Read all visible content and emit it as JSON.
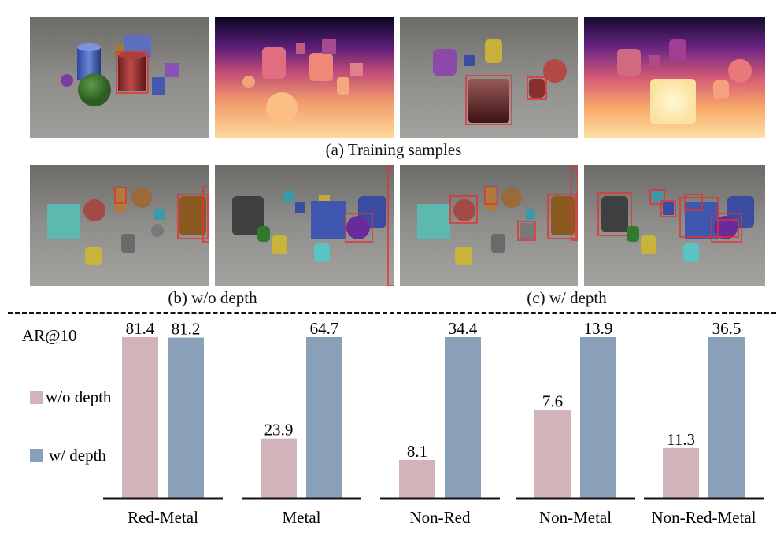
{
  "captions": {
    "training": "(a) Training samples",
    "without_depth": "(b) w/o depth",
    "with_depth": "(c) w/ depth"
  },
  "colors": {
    "without_depth": "#d2b3ba",
    "with_depth": "#8aa0b9",
    "box": "#e53030"
  },
  "chart_data": {
    "type": "bar",
    "metric_label": "AR@10",
    "categories": [
      "Red-Metal",
      "Metal",
      "Non-Red",
      "Non-Metal",
      "Non-Red-Metal"
    ],
    "series": [
      {
        "name": "w/o depth",
        "values": [
          81.4,
          23.9,
          8.1,
          7.6,
          11.3
        ]
      },
      {
        "name": "w/ depth",
        "values": [
          81.2,
          64.7,
          34.4,
          13.9,
          36.5
        ]
      }
    ],
    "value_labels": [
      [
        "81.4",
        "23.9",
        "8.1",
        "7.6",
        "11.3"
      ],
      [
        "81.2",
        "64.7",
        "34.4",
        "13.9",
        "36.5"
      ]
    ],
    "legend": [
      "w/o depth",
      "w/ depth"
    ],
    "scaling": "each category normalized to its larger value",
    "grid": false
  }
}
